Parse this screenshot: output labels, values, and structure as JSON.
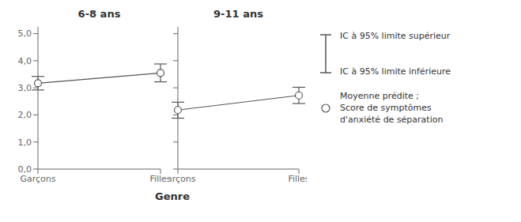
{
  "chart_data": [
    {
      "type": "line",
      "title": "6-8 ans",
      "xlabel": "Genre",
      "categories": [
        "Garçons",
        "Filles"
      ],
      "values": [
        3.17,
        3.55
      ],
      "ci_upper": [
        3.42,
        3.88
      ],
      "ci_lower": [
        2.92,
        3.22
      ],
      "color": "#555555",
      "marker": "o",
      "ylim": [
        0.0,
        5.25
      ],
      "yticks": [
        {
          "value": 0.0,
          "label": "0,0"
        },
        {
          "value": 1.0,
          "label": "1,0"
        },
        {
          "value": 2.0,
          "label": "2,0"
        },
        {
          "value": 3.0,
          "label": "3,0"
        },
        {
          "value": 4.0,
          "label": "4,0"
        },
        {
          "value": 5.0,
          "label": "5,0"
        }
      ]
    },
    {
      "type": "line",
      "title": "9-11 ans",
      "categories": [
        "Garçons",
        "Filles"
      ],
      "values": [
        2.18,
        2.72
      ],
      "ci_upper": [
        2.47,
        3.02
      ],
      "ci_lower": [
        1.88,
        2.42
      ],
      "color": "#555555",
      "marker": "o",
      "ylim": [
        0.0,
        5.25
      ],
      "yticks": [
        0.0,
        1.0,
        2.0,
        3.0,
        4.0,
        5.0
      ],
      "tick_labels": "x",
      "annotations": [
        [
          "IC à 95% limite supérieur",
          "IC à 95% limite inférieure"
        ],
        [
          "Moyenne prédite ;",
          "Score de symptômes",
          "d'anxiété de séparation"
        ]
      ]
    }
  ]
}
